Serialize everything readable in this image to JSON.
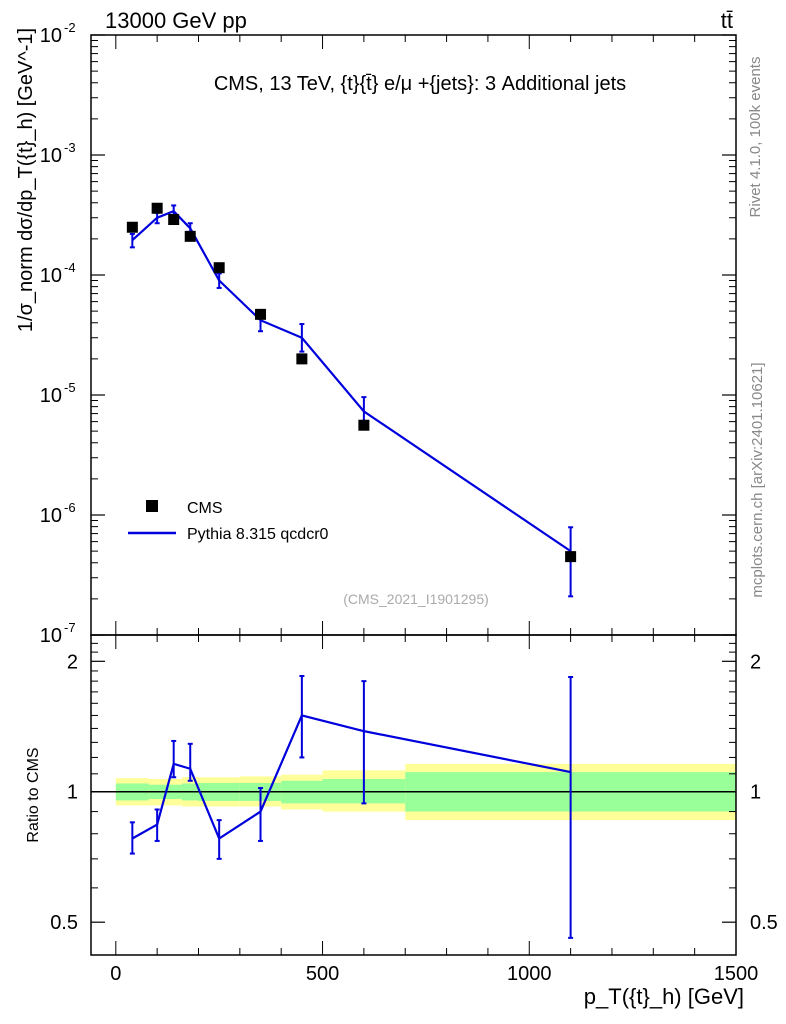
{
  "header": {
    "energy_label": "13000 GeV pp",
    "process_label": "tt̄"
  },
  "side_labels": {
    "rivet": "Rivet 4.1.0,  100k events",
    "mcplots": "mcplots.cern.ch [arXiv:2401.10621]"
  },
  "chart_data": [
    {
      "type": "scatter",
      "panel": "main",
      "title": "CMS, 13 TeV, {t}{t̄} e/μ +{jets}: 3 Additional jets",
      "watermark": "(CMS_2021_I1901295)",
      "ylabel": "1/σ_norm dσ/dp_T({t}_h) [GeV^-1]",
      "yscale": "log",
      "ylim": [
        1e-07,
        0.01
      ],
      "xlim": [
        -60,
        1500
      ],
      "ytick_labels": [
        "10^-7",
        "10^-6",
        "10^-5",
        "10^-4",
        "10^-3",
        "10^-2"
      ],
      "legend": [
        "CMS",
        "Pythia 8.315 qcdcr0"
      ],
      "legend_position": "bottom-left",
      "series": [
        {
          "name": "CMS",
          "style": "markers",
          "color": "#000000",
          "x": [
            40,
            100,
            140,
            180,
            250,
            350,
            450,
            600,
            1100
          ],
          "y": [
            0.00025,
            0.00036,
            0.00029,
            0.00021,
            0.000115,
            4.7e-05,
            2e-05,
            5.6e-06,
            4.5e-07
          ]
        },
        {
          "name": "Pythia 8.315 qcdcr0",
          "style": "line",
          "color": "#0000dd",
          "x": [
            40,
            100,
            140,
            180,
            250,
            350,
            450,
            600,
            1100
          ],
          "y": [
            0.000195,
            0.0003,
            0.00034,
            0.000245,
            9e-05,
            4.2e-05,
            3e-05,
            7.3e-06,
            5e-07
          ],
          "yerr_low": [
            0.00017,
            0.00027,
            0.000305,
            0.00022,
            7.8e-05,
            3.4e-05,
            2.3e-05,
            5.6e-06,
            2.1e-07
          ],
          "yerr_high": [
            0.00022,
            0.00033,
            0.00038,
            0.00027,
            0.000103,
            5e-05,
            3.9e-05,
            9.6e-06,
            7.9e-07
          ]
        }
      ]
    },
    {
      "type": "line",
      "panel": "ratio",
      "ylabel": "Ratio to CMS",
      "xlabel": "p_T({t}_h) [GeV]",
      "xlim": [
        -60,
        1500
      ],
      "ylim": [
        0.42,
        2.3
      ],
      "xtick_labels": [
        "0",
        "500",
        "1000",
        "1500"
      ],
      "ytick_labels": [
        "0.5",
        "1",
        "2"
      ],
      "bands": {
        "bin_edges": [
          0,
          80,
          120,
          160,
          200,
          300,
          400,
          500,
          700,
          1500
        ],
        "inner_low": [
          0.955,
          0.962,
          0.962,
          0.955,
          0.952,
          0.952,
          0.94,
          0.94,
          0.9
        ],
        "inner_high": [
          1.045,
          1.038,
          1.038,
          1.045,
          1.048,
          1.048,
          1.06,
          1.07,
          1.11
        ],
        "outer_low": [
          0.93,
          0.93,
          0.93,
          0.925,
          0.925,
          0.925,
          0.91,
          0.9,
          0.86
        ],
        "outer_high": [
          1.075,
          1.07,
          1.07,
          1.08,
          1.08,
          1.085,
          1.095,
          1.12,
          1.16
        ],
        "inner_color": "#99ff99",
        "outer_color": "#ffff99"
      },
      "series": [
        {
          "name": "Pythia 8.315 qcdcr0",
          "color": "#0000dd",
          "x": [
            40,
            100,
            140,
            180,
            250,
            350,
            450,
            600,
            1100
          ],
          "y": [
            0.78,
            0.84,
            1.16,
            1.13,
            0.78,
            0.9,
            1.5,
            1.38,
            1.11
          ],
          "yerr_low": [
            0.72,
            0.77,
            1.08,
            1.06,
            0.7,
            0.77,
            1.2,
            0.94,
            0.46
          ],
          "yerr_high": [
            0.85,
            0.91,
            1.31,
            1.29,
            0.86,
            1.02,
            1.85,
            1.8,
            1.84
          ]
        }
      ]
    }
  ]
}
